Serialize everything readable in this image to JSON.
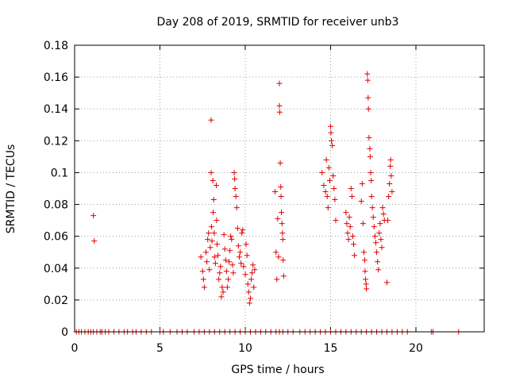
{
  "chart_data": {
    "type": "scatter",
    "title": "Day 208 of 2019, SRMTID for receiver unb3",
    "xlabel": "GPS time / hours",
    "ylabel": "SRMTID / TECUs",
    "xlim": [
      0,
      24
    ],
    "ylim": [
      0,
      0.18
    ],
    "xticks": [
      0,
      5,
      10,
      15,
      20
    ],
    "xtick_labels": [
      "0",
      "5",
      "10",
      "15",
      "20"
    ],
    "yticks": [
      0,
      0.02,
      0.04,
      0.06,
      0.08,
      0.1,
      0.12,
      0.14,
      0.16,
      0.18
    ],
    "ytick_labels": [
      "0",
      "0.02",
      "0.04",
      "0.06",
      "0.08",
      "0.1",
      "0.12",
      "0.14",
      "0.16",
      "0.18"
    ],
    "grid": true,
    "marker": "+",
    "marker_color": "#e00000",
    "series": [
      {
        "name": "SRMTID",
        "points": [
          [
            1.1,
            0.073
          ],
          [
            1.15,
            0.057
          ],
          [
            7.4,
            0.047
          ],
          [
            7.5,
            0.038
          ],
          [
            7.55,
            0.033
          ],
          [
            7.6,
            0.028
          ],
          [
            7.7,
            0.05
          ],
          [
            7.75,
            0.044
          ],
          [
            7.8,
            0.058
          ],
          [
            7.85,
            0.062
          ],
          [
            7.9,
            0.039
          ],
          [
            7.95,
            0.053
          ],
          [
            8.0,
            0.133
          ],
          [
            8.0,
            0.1
          ],
          [
            8.02,
            0.066
          ],
          [
            8.05,
            0.057
          ],
          [
            8.1,
            0.095
          ],
          [
            8.12,
            0.075
          ],
          [
            8.15,
            0.083
          ],
          [
            8.18,
            0.062
          ],
          [
            8.2,
            0.047
          ],
          [
            8.25,
            0.043
          ],
          [
            8.3,
            0.092
          ],
          [
            8.32,
            0.07
          ],
          [
            8.35,
            0.055
          ],
          [
            8.4,
            0.048
          ],
          [
            8.45,
            0.033
          ],
          [
            8.5,
            0.037
          ],
          [
            8.55,
            0.041
          ],
          [
            8.6,
            0.022
          ],
          [
            8.65,
            0.028
          ],
          [
            8.7,
            0.025
          ],
          [
            8.75,
            0.061
          ],
          [
            8.8,
            0.052
          ],
          [
            8.85,
            0.045
          ],
          [
            8.9,
            0.038
          ],
          [
            8.95,
            0.028
          ],
          [
            9.0,
            0.033
          ],
          [
            9.05,
            0.044
          ],
          [
            9.1,
            0.051
          ],
          [
            9.15,
            0.06
          ],
          [
            9.2,
            0.058
          ],
          [
            9.25,
            0.042
          ],
          [
            9.3,
            0.037
          ],
          [
            9.35,
            0.1
          ],
          [
            9.38,
            0.096
          ],
          [
            9.4,
            0.09
          ],
          [
            9.45,
            0.085
          ],
          [
            9.5,
            0.078
          ],
          [
            9.55,
            0.065
          ],
          [
            9.6,
            0.054
          ],
          [
            9.65,
            0.047
          ],
          [
            9.7,
            0.05
          ],
          [
            9.75,
            0.043
          ],
          [
            9.8,
            0.062
          ],
          [
            9.85,
            0.064
          ],
          [
            9.9,
            0.041
          ],
          [
            10.0,
            0.036
          ],
          [
            10.05,
            0.055
          ],
          [
            10.1,
            0.048
          ],
          [
            10.15,
            0.03
          ],
          [
            10.2,
            0.025
          ],
          [
            10.25,
            0.018
          ],
          [
            10.3,
            0.021
          ],
          [
            10.35,
            0.033
          ],
          [
            10.4,
            0.037
          ],
          [
            10.45,
            0.042
          ],
          [
            10.5,
            0.028
          ],
          [
            10.55,
            0.039
          ],
          [
            11.75,
            0.088
          ],
          [
            11.8,
            0.05
          ],
          [
            11.85,
            0.033
          ],
          [
            11.9,
            0.071
          ],
          [
            11.95,
            0.047
          ],
          [
            12.0,
            0.156
          ],
          [
            12.0,
            0.142
          ],
          [
            12.02,
            0.138
          ],
          [
            12.05,
            0.106
          ],
          [
            12.08,
            0.091
          ],
          [
            12.1,
            0.085
          ],
          [
            12.12,
            0.075
          ],
          [
            12.15,
            0.068
          ],
          [
            12.18,
            0.062
          ],
          [
            12.2,
            0.058
          ],
          [
            12.22,
            0.045
          ],
          [
            12.25,
            0.035
          ],
          [
            14.5,
            0.1
          ],
          [
            14.6,
            0.092
          ],
          [
            14.7,
            0.088
          ],
          [
            14.75,
            0.108
          ],
          [
            14.8,
            0.085
          ],
          [
            14.85,
            0.078
          ],
          [
            14.9,
            0.103
          ],
          [
            14.95,
            0.095
          ],
          [
            15.0,
            0.129
          ],
          [
            15.02,
            0.125
          ],
          [
            15.05,
            0.12
          ],
          [
            15.1,
            0.117
          ],
          [
            15.15,
            0.098
          ],
          [
            15.2,
            0.09
          ],
          [
            15.25,
            0.083
          ],
          [
            15.3,
            0.07
          ],
          [
            15.9,
            0.075
          ],
          [
            15.95,
            0.068
          ],
          [
            16.0,
            0.062
          ],
          [
            16.05,
            0.058
          ],
          [
            16.1,
            0.072
          ],
          [
            16.15,
            0.066
          ],
          [
            16.2,
            0.09
          ],
          [
            16.25,
            0.085
          ],
          [
            16.3,
            0.06
          ],
          [
            16.35,
            0.055
          ],
          [
            16.4,
            0.048
          ],
          [
            16.8,
            0.082
          ],
          [
            16.85,
            0.093
          ],
          [
            16.9,
            0.068
          ],
          [
            16.95,
            0.05
          ],
          [
            17.0,
            0.045
          ],
          [
            17.02,
            0.038
          ],
          [
            17.05,
            0.033
          ],
          [
            17.08,
            0.03
          ],
          [
            17.1,
            0.027
          ],
          [
            17.15,
            0.162
          ],
          [
            17.18,
            0.158
          ],
          [
            17.2,
            0.147
          ],
          [
            17.22,
            0.14
          ],
          [
            17.25,
            0.122
          ],
          [
            17.3,
            0.115
          ],
          [
            17.32,
            0.11
          ],
          [
            17.35,
            0.1
          ],
          [
            17.38,
            0.095
          ],
          [
            17.4,
            0.085
          ],
          [
            17.45,
            0.078
          ],
          [
            17.5,
            0.072
          ],
          [
            17.55,
            0.066
          ],
          [
            17.6,
            0.06
          ],
          [
            17.65,
            0.056
          ],
          [
            17.7,
            0.05
          ],
          [
            17.75,
            0.044
          ],
          [
            17.8,
            0.039
          ],
          [
            17.85,
            0.062
          ],
          [
            17.9,
            0.068
          ],
          [
            17.95,
            0.058
          ],
          [
            18.0,
            0.053
          ],
          [
            18.05,
            0.078
          ],
          [
            18.1,
            0.074
          ],
          [
            18.15,
            0.07
          ],
          [
            18.3,
            0.031
          ],
          [
            18.35,
            0.07
          ],
          [
            18.4,
            0.085
          ],
          [
            18.45,
            0.093
          ],
          [
            18.5,
            0.104
          ],
          [
            18.52,
            0.108
          ],
          [
            18.55,
            0.098
          ],
          [
            18.6,
            0.088
          ]
        ],
        "zero_x": [
          0.1,
          0.25,
          0.4,
          0.6,
          0.8,
          0.95,
          1.1,
          1.3,
          1.5,
          1.6,
          1.8,
          2.0,
          2.3,
          2.6,
          2.9,
          3.1,
          3.4,
          3.6,
          3.9,
          4.2,
          4.5,
          5.0,
          5.2,
          5.6,
          6.0,
          6.3,
          6.6,
          7.0,
          7.3,
          7.6,
          7.9,
          8.2,
          8.5,
          8.8,
          9.1,
          9.4,
          9.7,
          10.0,
          10.3,
          10.6,
          10.9,
          11.2,
          11.5,
          11.8,
          12.0,
          12.2,
          12.5,
          12.8,
          13.2,
          13.5,
          13.8,
          14.1,
          14.4,
          14.7,
          15.0,
          15.3,
          15.6,
          15.9,
          16.2,
          16.5,
          16.8,
          17.1,
          17.4,
          17.7,
          18.0,
          18.3,
          18.6,
          18.9,
          19.2,
          19.5,
          20.9,
          21.0,
          22.5
        ]
      }
    ]
  }
}
